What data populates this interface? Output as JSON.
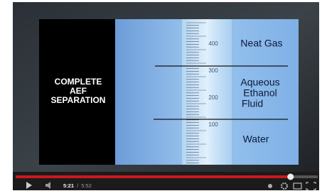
{
  "slide": {
    "left_text": [
      "COMPLETE",
      "AEF",
      "SEPARATION"
    ],
    "cylinder_marks": [
      "400",
      "300",
      "200",
      "100"
    ],
    "layers": [
      [
        "Neat Gas"
      ],
      [
        "Aqueous",
        "Ethanol",
        "Fluid"
      ],
      [
        "Water"
      ]
    ]
  },
  "player": {
    "current_time": "5:21",
    "separator": "/",
    "duration": "5:52",
    "progress": 0.91
  }
}
